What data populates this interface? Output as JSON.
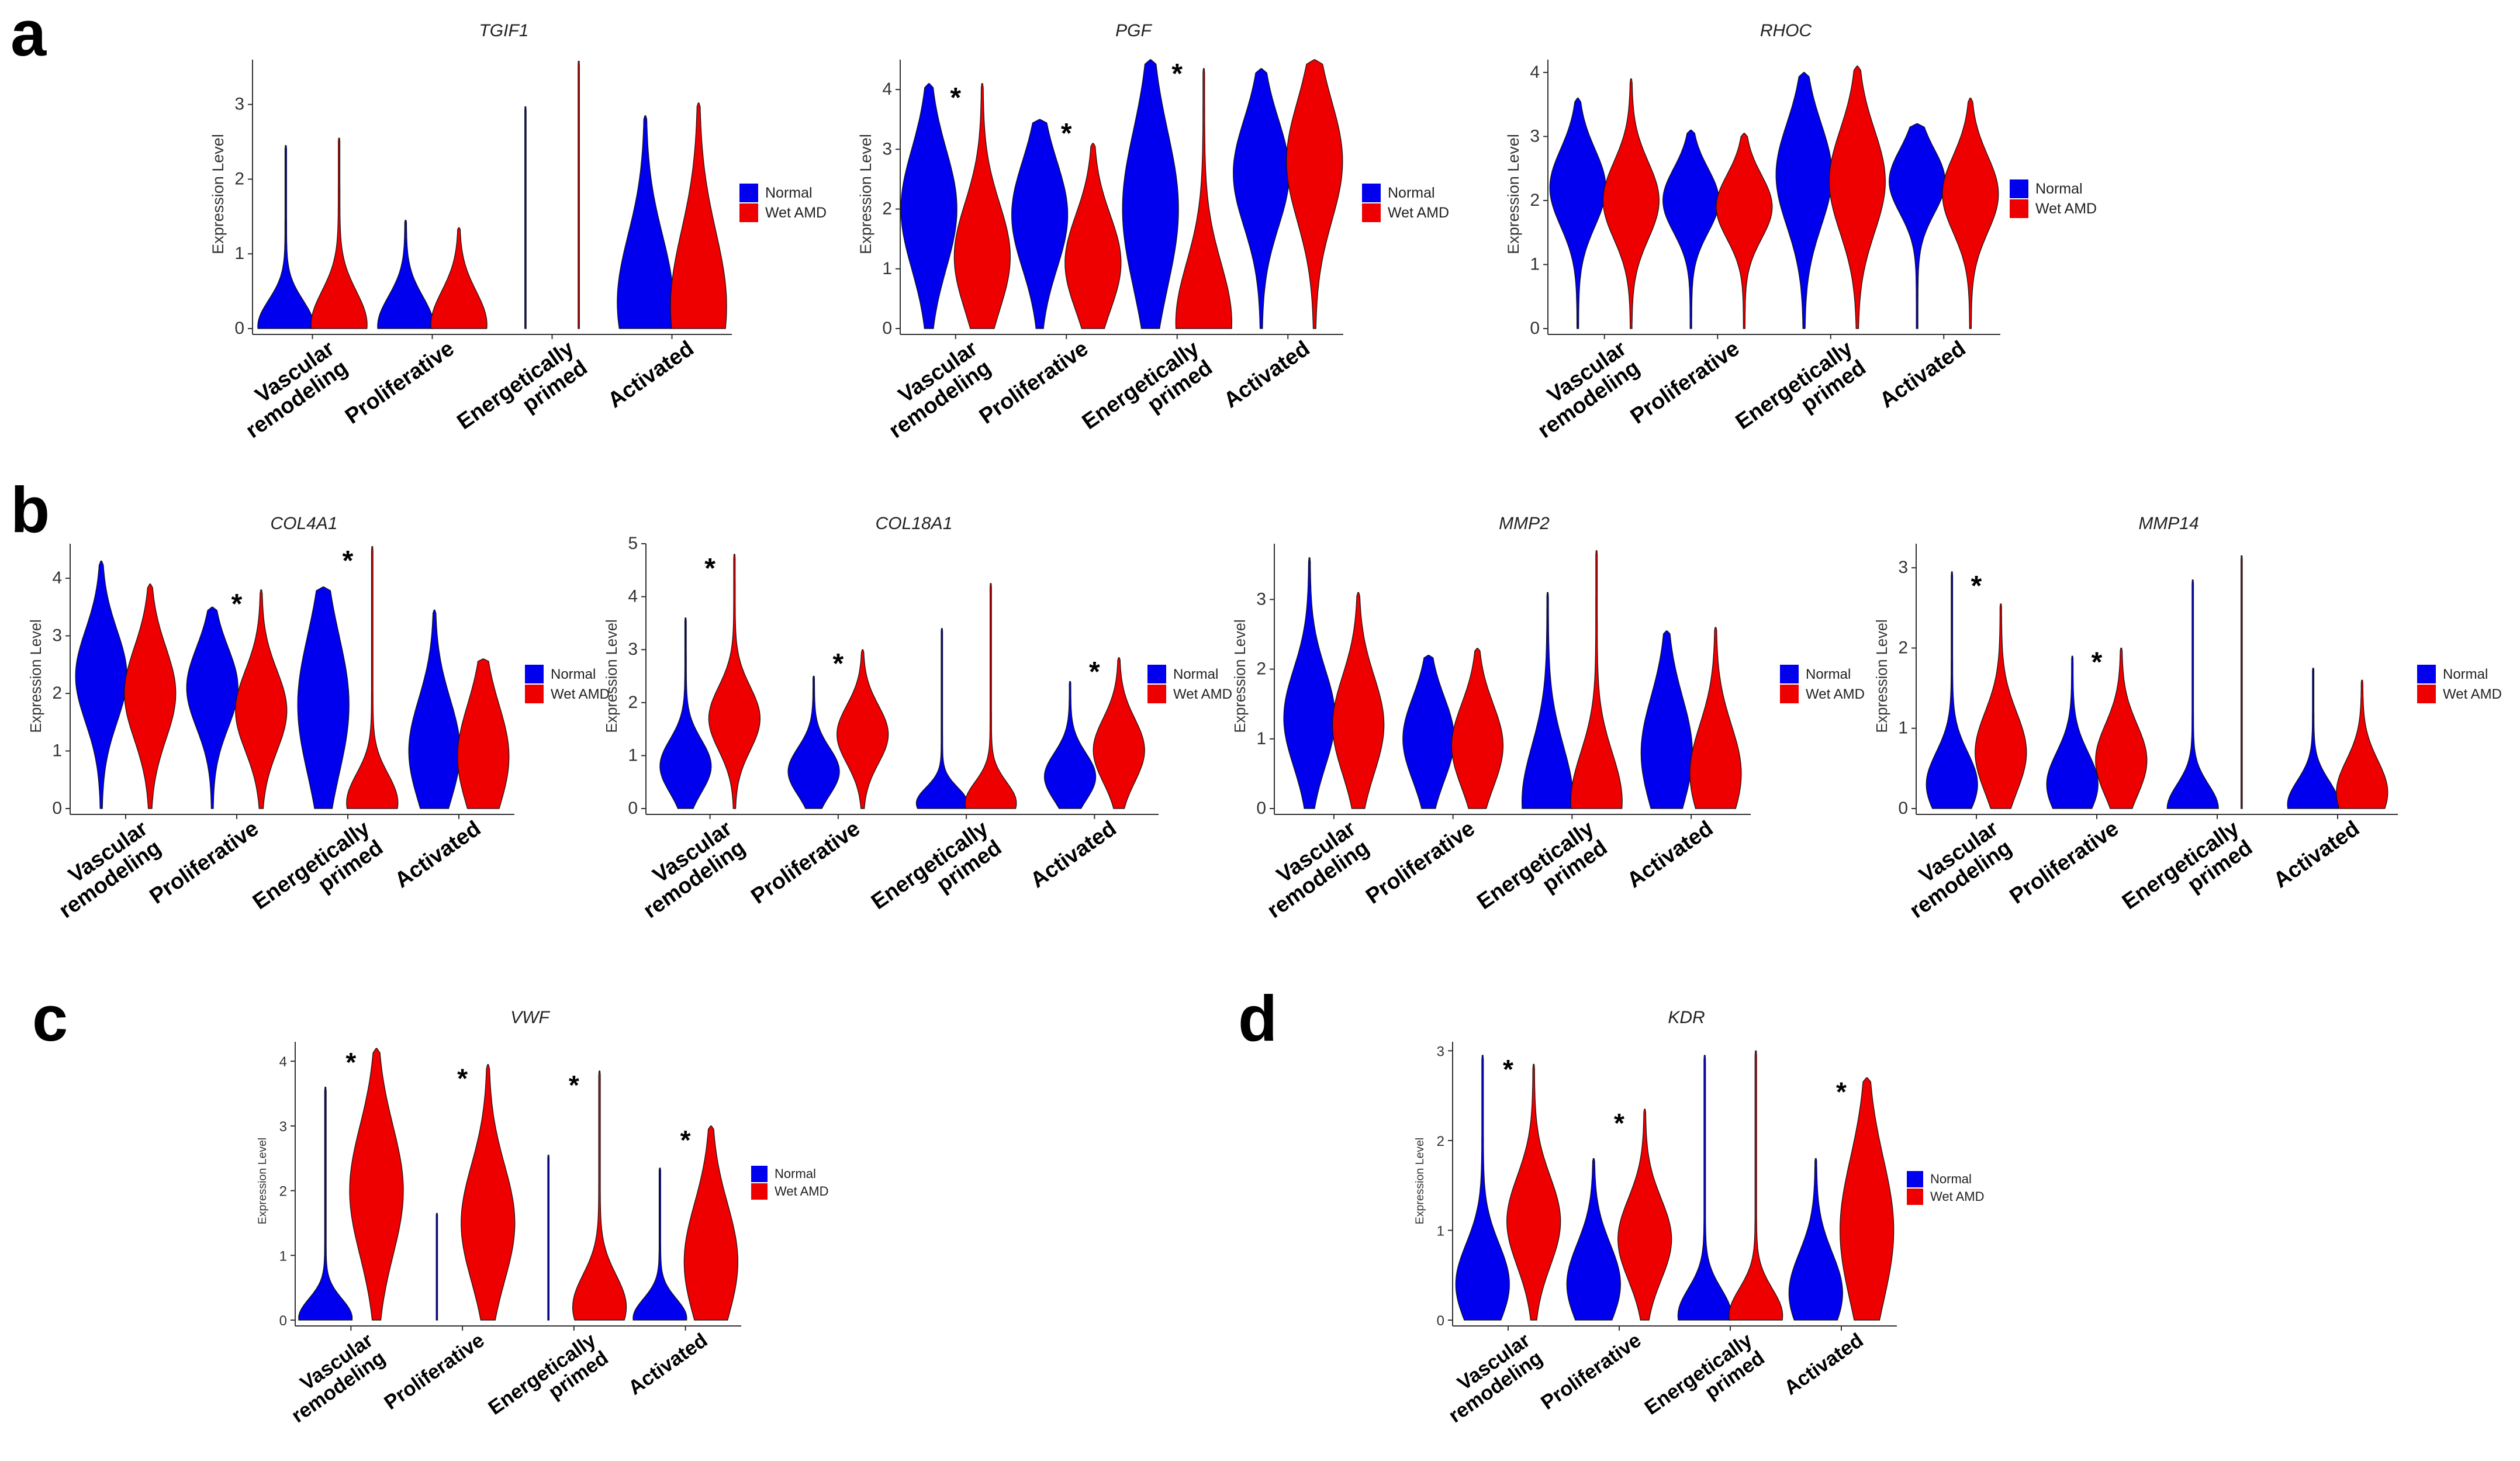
{
  "figure": {
    "panel_letters": [
      "a",
      "b",
      "c",
      "d"
    ],
    "categories": [
      [
        "Vascular",
        "remodeling"
      ],
      [
        "Proliferative"
      ],
      [
        "Energetically",
        "primed"
      ],
      [
        "Activated"
      ]
    ],
    "y_axis_label": "Expression Level",
    "legend": [
      {
        "label": "Normal",
        "color": "#0000ee"
      },
      {
        "label": "Wet AMD",
        "color": "#ee0000"
      }
    ],
    "significance_marker": "*"
  },
  "chart_data": [
    {
      "type": "violin",
      "panel": "a",
      "title": "TGIF1",
      "ylim": [
        0,
        3.6
      ],
      "yticks": [
        0,
        1,
        2,
        3
      ],
      "significant": [
        false,
        false,
        false,
        false
      ],
      "series": [
        {
          "name": "Normal",
          "max": [
            2.45,
            1.45,
            2.97,
            2.85
          ],
          "median": [
            0.03,
            0.03,
            0.0,
            0.35
          ],
          "spread": [
            0.35,
            0.4,
            0.0,
            0.9
          ]
        },
        {
          "name": "Wet AMD",
          "max": [
            2.55,
            1.35,
            3.58,
            3.02
          ],
          "median": [
            0.05,
            0.05,
            0.0,
            0.3
          ],
          "spread": [
            0.45,
            0.45,
            0.0,
            1.0
          ]
        }
      ]
    },
    {
      "type": "violin",
      "panel": "a",
      "title": "PGF",
      "ylim": [
        0,
        4.5
      ],
      "yticks": [
        0,
        1,
        2,
        3,
        4
      ],
      "significant": [
        true,
        true,
        true,
        false
      ],
      "series": [
        {
          "name": "Normal",
          "max": [
            4.1,
            3.5,
            4.5,
            4.35
          ],
          "median": [
            2.0,
            1.9,
            2.0,
            2.6
          ],
          "spread": [
            1.0,
            0.9,
            1.3,
            0.9
          ]
        },
        {
          "name": "Wet AMD",
          "max": [
            4.1,
            3.1,
            4.35,
            4.5
          ],
          "median": [
            1.2,
            1.1,
            0.1,
            2.8
          ],
          "spread": [
            0.9,
            0.8,
            1.0,
            1.0
          ]
        }
      ]
    },
    {
      "type": "violin",
      "panel": "a",
      "title": "RHOC",
      "ylim": [
        0,
        4.2
      ],
      "yticks": [
        0,
        1,
        2,
        3,
        4
      ],
      "significant": [
        false,
        false,
        false,
        false
      ],
      "series": [
        {
          "name": "Normal",
          "max": [
            3.6,
            3.1,
            4.0,
            3.2
          ],
          "median": [
            2.2,
            2.0,
            2.4,
            2.3
          ],
          "spread": [
            0.6,
            0.5,
            0.8,
            0.5
          ]
        },
        {
          "name": "Wet AMD",
          "max": [
            3.9,
            3.05,
            4.1,
            3.6
          ],
          "median": [
            2.0,
            1.9,
            2.3,
            2.1
          ],
          "spread": [
            0.6,
            0.5,
            0.8,
            0.6
          ]
        }
      ]
    },
    {
      "type": "violin",
      "panel": "b",
      "title": "COL4A1",
      "ylim": [
        0,
        4.6
      ],
      "yticks": [
        0,
        1,
        2,
        3,
        4
      ],
      "significant": [
        false,
        true,
        true,
        false
      ],
      "series": [
        {
          "name": "Normal",
          "max": [
            4.3,
            3.5,
            3.85,
            3.45
          ],
          "median": [
            2.3,
            2.1,
            1.8,
            1.0
          ],
          "spread": [
            0.8,
            0.7,
            1.2,
            0.9
          ]
        },
        {
          "name": "Wet AMD",
          "max": [
            3.9,
            3.8,
            4.55,
            2.6
          ],
          "median": [
            2.0,
            1.7,
            0.1,
            0.9
          ],
          "spread": [
            0.8,
            0.7,
            0.5,
            0.9
          ]
        }
      ]
    },
    {
      "type": "violin",
      "panel": "b",
      "title": "COL18A1",
      "ylim": [
        0,
        5
      ],
      "yticks": [
        0,
        1,
        2,
        3,
        4,
        5
      ],
      "significant": [
        true,
        true,
        false,
        true
      ],
      "series": [
        {
          "name": "Normal",
          "max": [
            3.6,
            2.5,
            3.4,
            2.4
          ],
          "median": [
            0.8,
            0.7,
            0.1,
            0.6
          ],
          "spread": [
            0.5,
            0.45,
            0.3,
            0.45
          ]
        },
        {
          "name": "Wet AMD",
          "max": [
            4.8,
            3.0,
            4.25,
            2.85
          ],
          "median": [
            1.7,
            1.4,
            0.1,
            1.1
          ],
          "spread": [
            0.6,
            0.55,
            0.4,
            0.6
          ]
        }
      ]
    },
    {
      "type": "violin",
      "panel": "b",
      "title": "MMP2",
      "ylim": [
        0,
        3.8
      ],
      "yticks": [
        0,
        1,
        2,
        3
      ],
      "significant": [
        false,
        false,
        false,
        false
      ],
      "series": [
        {
          "name": "Normal",
          "max": [
            3.6,
            2.2,
            3.1,
            2.55
          ],
          "median": [
            1.3,
            1.0,
            0.1,
            0.8
          ],
          "spread": [
            0.7,
            0.6,
            0.8,
            0.8
          ]
        },
        {
          "name": "Wet AMD",
          "max": [
            3.1,
            2.3,
            3.7,
            2.6
          ],
          "median": [
            1.2,
            0.9,
            0.1,
            0.5
          ],
          "spread": [
            0.7,
            0.6,
            0.7,
            0.7
          ]
        }
      ]
    },
    {
      "type": "violin",
      "panel": "b",
      "title": "MMP14",
      "ylim": [
        0,
        3.3
      ],
      "yticks": [
        0,
        1,
        2,
        3
      ],
      "significant": [
        true,
        true,
        false,
        false
      ],
      "series": [
        {
          "name": "Normal",
          "max": [
            2.95,
            1.9,
            2.85,
            1.75
          ],
          "median": [
            0.3,
            0.3,
            0.0,
            0.05
          ],
          "spread": [
            0.4,
            0.4,
            0.3,
            0.3
          ]
        },
        {
          "name": "Wet AMD",
          "max": [
            2.55,
            2.0,
            3.15,
            1.6
          ],
          "median": [
            0.7,
            0.6,
            0.0,
            0.2
          ],
          "spread": [
            0.5,
            0.45,
            0.0,
            0.4
          ]
        }
      ]
    },
    {
      "type": "violin",
      "panel": "c",
      "title": "VWF",
      "ylim": [
        0,
        4.3
      ],
      "yticks": [
        0,
        1,
        2,
        3,
        4
      ],
      "significant": [
        true,
        true,
        true,
        true
      ],
      "series": [
        {
          "name": "Normal",
          "max": [
            3.6,
            1.65,
            2.55,
            2.35
          ],
          "median": [
            0.03,
            0.0,
            0.0,
            0.03
          ],
          "spread": [
            0.3,
            0.0,
            0.0,
            0.3
          ]
        },
        {
          "name": "Wet AMD",
          "max": [
            4.2,
            3.95,
            3.85,
            3.0
          ],
          "median": [
            2.0,
            1.5,
            0.2,
            0.9
          ],
          "spread": [
            1.0,
            0.9,
            0.5,
            0.9
          ]
        }
      ]
    },
    {
      "type": "violin",
      "panel": "d",
      "title": "KDR",
      "ylim": [
        0,
        3.1
      ],
      "yticks": [
        0,
        1,
        2,
        3
      ],
      "significant": [
        true,
        true,
        false,
        true
      ],
      "series": [
        {
          "name": "Normal",
          "max": [
            2.95,
            1.8,
            2.95,
            1.8
          ],
          "median": [
            0.4,
            0.4,
            0.05,
            0.3
          ],
          "spread": [
            0.45,
            0.45,
            0.3,
            0.45
          ]
        },
        {
          "name": "Wet AMD",
          "max": [
            2.85,
            2.35,
            3.0,
            2.7
          ],
          "median": [
            1.1,
            0.9,
            0.05,
            1.0
          ],
          "spread": [
            0.5,
            0.45,
            0.3,
            0.8
          ]
        }
      ]
    }
  ]
}
